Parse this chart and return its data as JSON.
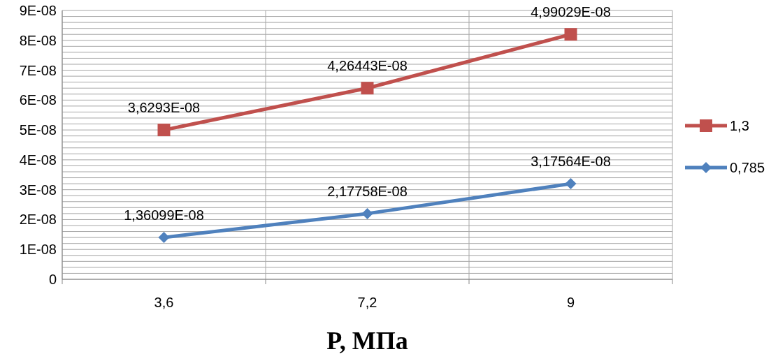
{
  "chart_data": {
    "type": "line",
    "xlabel": "P, МПа",
    "categories": [
      "3,6",
      "7,2",
      "9"
    ],
    "series": [
      {
        "name": "1,3",
        "color": "#c0504d",
        "marker": "square",
        "values": [
          5e-08,
          6.4e-08,
          8.2e-08
        ],
        "value_labels": [
          "3,6293E-08",
          "4,26443E-08",
          "4,99029E-08"
        ]
      },
      {
        "name": "0,785",
        "color": "#4f81bd",
        "marker": "diamond",
        "values": [
          1.4e-08,
          2.2e-08,
          3.2e-08
        ],
        "value_labels": [
          "1,36099E-08",
          "2,17758E-08",
          "3,17564E-08"
        ]
      }
    ],
    "ylim": [
      0,
      9e-08
    ],
    "yticks": [
      0,
      {
        "value": 2e-09,
        "label": null
      },
      {
        "value": 4e-09,
        "label": null
      },
      {
        "value": 6e-09,
        "label": null
      },
      {
        "value": 8e-09,
        "label": null
      },
      {
        "value": 1e-08,
        "label": "1E-08"
      },
      {
        "value": 1.2e-08,
        "label": null
      },
      {
        "value": 1.4e-08,
        "label": null
      },
      {
        "value": 1.6e-08,
        "label": null
      },
      {
        "value": 1.8e-08,
        "label": null
      },
      {
        "value": 2e-08,
        "label": "2E-08"
      },
      {
        "value": 2.2e-08,
        "label": null
      },
      {
        "value": 2.4e-08,
        "label": null
      },
      {
        "value": 2.6e-08,
        "label": null
      },
      {
        "value": 2.8e-08,
        "label": null
      },
      {
        "value": 3e-08,
        "label": "3E-08"
      },
      {
        "value": 3.2e-08,
        "label": null
      },
      {
        "value": 3.4e-08,
        "label": null
      },
      {
        "value": 3.6e-08,
        "label": null
      },
      {
        "value": 3.8e-08,
        "label": null
      },
      {
        "value": 4e-08,
        "label": "4E-08"
      },
      {
        "value": 4.2e-08,
        "label": null
      },
      {
        "value": 4.4e-08,
        "label": null
      },
      {
        "value": 4.6e-08,
        "label": null
      },
      {
        "value": 4.8e-08,
        "label": null
      },
      {
        "value": 5e-08,
        "label": "5E-08"
      },
      {
        "value": 5.2e-08,
        "label": null
      },
      {
        "value": 5.4e-08,
        "label": null
      },
      {
        "value": 5.6e-08,
        "label": null
      },
      {
        "value": 5.8e-08,
        "label": null
      },
      {
        "value": 6e-08,
        "label": "6E-08"
      },
      {
        "value": 6.2e-08,
        "label": null
      },
      {
        "value": 6.4e-08,
        "label": null
      },
      {
        "value": 6.6e-08,
        "label": null
      },
      {
        "value": 6.8e-08,
        "label": null
      },
      {
        "value": 7e-08,
        "label": "7E-08"
      },
      {
        "value": 7.2e-08,
        "label": null
      },
      {
        "value": 7.4e-08,
        "label": null
      },
      {
        "value": 7.6e-08,
        "label": null
      },
      {
        "value": 7.8e-08,
        "label": null
      },
      {
        "value": 8e-08,
        "label": "8E-08"
      },
      {
        "value": 8.2e-08,
        "label": null
      },
      {
        "value": 8.4e-08,
        "label": null
      },
      {
        "value": 8.6e-08,
        "label": null
      },
      {
        "value": 8.8e-08,
        "label": null
      },
      {
        "value": 9e-08,
        "label": "9E-08"
      }
    ],
    "grid": true,
    "legend": "right",
    "line_style": "solid"
  }
}
